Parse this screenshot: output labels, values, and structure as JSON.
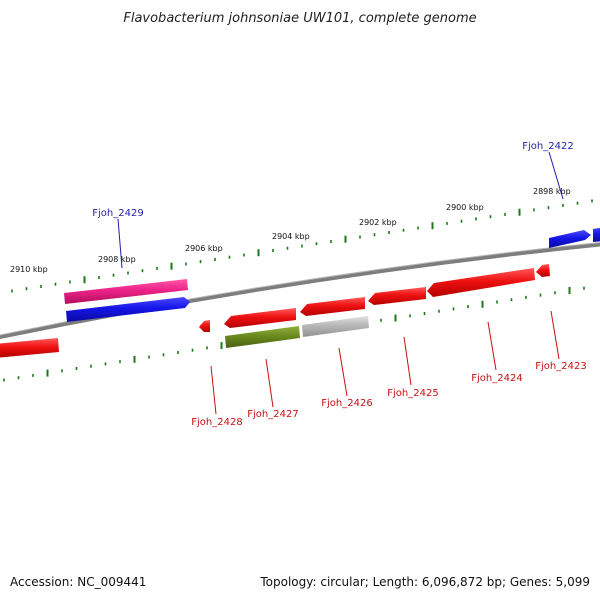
{
  "title": "Flavobacterium johnsoniae UW101, complete genome",
  "footer": {
    "accession": "Accession: NC_009441",
    "topology": "Topology: circular; Length: 6,096,872 bp; Genes: 5,099"
  },
  "colors": {
    "backbone": "#8a8a8a",
    "tick": "#1a7a1a",
    "red": "#ee1111",
    "blue": "#1515e8",
    "pink": "#ee2288",
    "olive": "#6b8a1f",
    "grey": "#b8b8b8",
    "label_top": "#1f1fa8",
    "label_bottom": "#c81010"
  },
  "scale_labels": [
    "2910 kbp",
    "2908 kbp",
    "2906 kbp",
    "2904 kbp",
    "2902 kbp",
    "2900 kbp",
    "2898 kbp"
  ],
  "gene_labels_top": [
    "Fjoh_2429",
    "Fjoh_2422"
  ],
  "gene_labels_bottom": [
    "Fjoh_2428",
    "Fjoh_2427",
    "Fjoh_2426",
    "Fjoh_2425",
    "Fjoh_2424",
    "Fjoh_2423"
  ]
}
